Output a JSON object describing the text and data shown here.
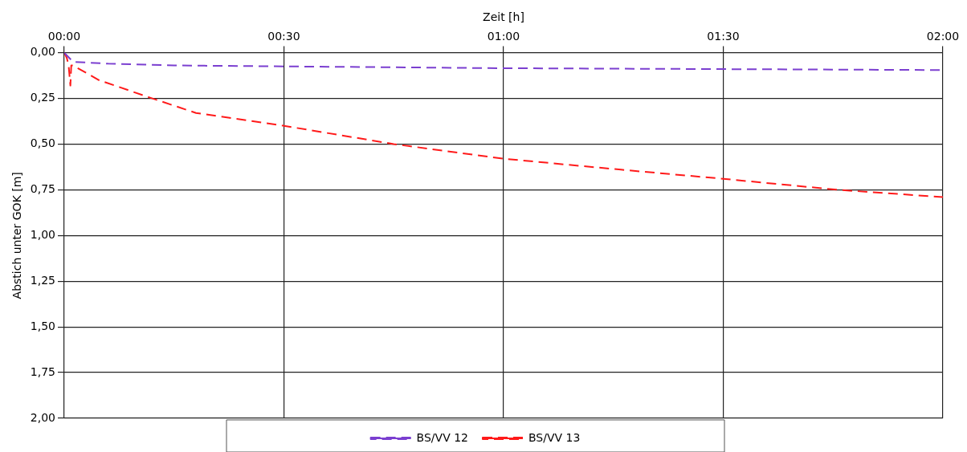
{
  "chart_data": {
    "type": "line",
    "xlabel": "Zeit [h]",
    "ylabel": "Abstich unter GOK [m]",
    "xlim": [
      0,
      2
    ],
    "xticks": [
      {
        "value": 0,
        "label": "00:00"
      },
      {
        "value": 0.5,
        "label": "00:30"
      },
      {
        "value": 1,
        "label": "01:00"
      },
      {
        "value": 1.5,
        "label": "01:30"
      },
      {
        "value": 2,
        "label": "02:00"
      }
    ],
    "ylim": [
      2,
      0
    ],
    "yticks": [
      {
        "value": 0,
        "label": "0,00"
      },
      {
        "value": 0.25,
        "label": "0,25"
      },
      {
        "value": 0.5,
        "label": "0,50"
      },
      {
        "value": 0.75,
        "label": "0,75"
      },
      {
        "value": 1,
        "label": "1,00"
      },
      {
        "value": 1.25,
        "label": "1,25"
      },
      {
        "value": 1.5,
        "label": "1,50"
      },
      {
        "value": 1.75,
        "label": "1,75"
      },
      {
        "value": 2,
        "label": "2,00"
      }
    ],
    "grid": true,
    "legend": "bottom",
    "marker": "none",
    "series": [
      {
        "name": "BS/VV 12",
        "color": "#7b3fd0",
        "line_style": "dashed",
        "x": [
          0,
          0.02,
          0.1,
          0.25,
          0.5,
          1,
          1.5,
          2
        ],
        "values": [
          0,
          0.05,
          0.06,
          0.07,
          0.075,
          0.085,
          0.09,
          0.095
        ]
      },
      {
        "name": "BS/VV 13",
        "color": "#ff1a1a",
        "line_style": "dashed",
        "x": [
          0,
          0.006,
          0.01,
          0.014,
          0.016,
          0.02,
          0.079,
          0.194,
          0.3,
          0.5,
          0.75,
          1,
          1.267,
          1.5,
          1.76,
          2
        ],
        "values": [
          0,
          0.03,
          0.07,
          0.18,
          0.07,
          0.07,
          0.15,
          0.245,
          0.33,
          0.4,
          0.5,
          0.58,
          0.64,
          0.69,
          0.75,
          0.79
        ]
      }
    ]
  }
}
